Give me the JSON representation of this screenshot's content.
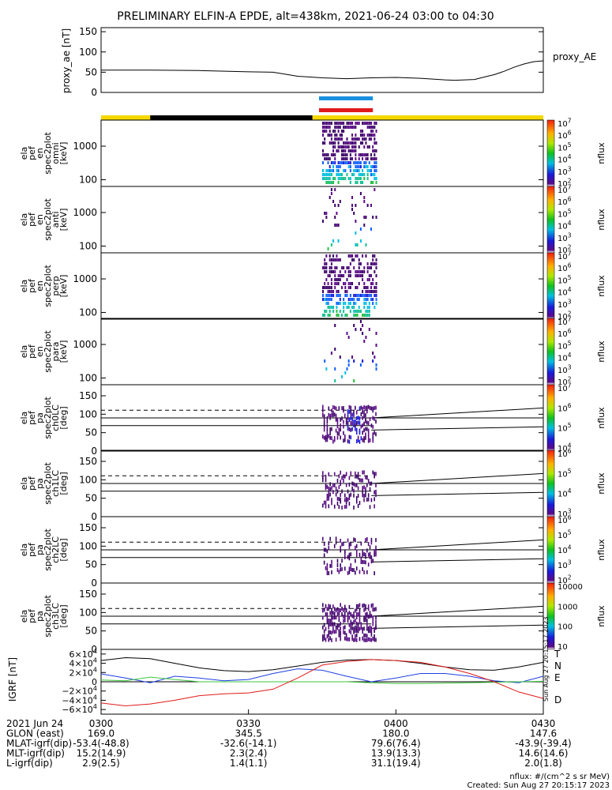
{
  "title": "PRELIMINARY ELFIN-A EPDE, alt=438km, 2021-06-24 03:00 to 04:30",
  "colors": {
    "blue_bar": "#1a8fe0",
    "red_bar": "#e01a1a",
    "sunlit": "#f5d800",
    "eclipse": "#000000"
  },
  "proxy_panel": {
    "ylabel": "proxy_ae [nT]",
    "legend": "proxy_AE",
    "yticks": [
      "150",
      "100",
      "50",
      "0"
    ]
  },
  "spectra_panels": [
    {
      "ylabel": [
        "ela",
        "pef",
        "en",
        "spec2plot",
        "omni",
        "[keV]"
      ],
      "yticks": [
        "1000",
        "100"
      ]
    },
    {
      "ylabel": [
        "ela",
        "pef",
        "en",
        "spec2plot",
        "anti",
        "[keV]"
      ],
      "yticks": [
        "1000",
        "100"
      ]
    },
    {
      "ylabel": [
        "ela",
        "pef",
        "en",
        "spec2plot",
        "perp",
        "[keV]"
      ],
      "yticks": [
        "1000",
        "100"
      ]
    },
    {
      "ylabel": [
        "ela",
        "pef",
        "en",
        "spec2plot",
        "para",
        "[keV]"
      ],
      "yticks": [
        "1000",
        "100"
      ]
    }
  ],
  "pa_panels": [
    {
      "ylabel": [
        "ela",
        "pef",
        "pa",
        "spec2plot",
        "ch0LC",
        "[deg]"
      ],
      "yticks": [
        "150",
        "100",
        "50",
        "0"
      ]
    },
    {
      "ylabel": [
        "ela",
        "pef",
        "pa",
        "spec2plot",
        "ch1LC",
        "[deg]"
      ],
      "yticks": [
        "150",
        "100",
        "50",
        "0"
      ]
    },
    {
      "ylabel": [
        "ela",
        "pef",
        "pa",
        "spec2plot",
        "ch2LC",
        "[deg]"
      ],
      "yticks": [
        "150",
        "100",
        "50",
        "0"
      ]
    },
    {
      "ylabel": [
        "ela",
        "pef",
        "pa",
        "spec2plot",
        "ch3LC",
        "[deg]"
      ],
      "yticks": [
        "150",
        "100",
        "50",
        "0"
      ]
    }
  ],
  "colorbars": [
    {
      "label": "nflux",
      "ticks": [
        "10^7",
        "10^6",
        "10^5",
        "10^4",
        "10^3",
        "10^2"
      ]
    },
    {
      "label": "nflux",
      "ticks": [
        "10^7",
        "10^6",
        "10^5",
        "10^4",
        "10^3",
        "10^2"
      ]
    },
    {
      "label": "nflux",
      "ticks": [
        "10^7",
        "10^6",
        "10^5",
        "10^4",
        "10^3",
        "10^2"
      ]
    },
    {
      "label": "nflux",
      "ticks": [
        "10^7",
        "10^6",
        "10^5",
        "10^4",
        "10^3",
        "10^2"
      ]
    },
    {
      "label": "nflux",
      "ticks": [
        "10^7",
        "10^6",
        "10^5",
        "10^4"
      ]
    },
    {
      "label": "nflux",
      "ticks": [
        "10^6",
        "10^5",
        "10^4",
        "10^3"
      ]
    },
    {
      "label": "nflux",
      "ticks": [
        "10^6",
        "10^5",
        "10^4",
        "10^3",
        "10^2"
      ]
    },
    {
      "label": "nflux",
      "ticks": [
        "10000",
        "1000",
        "100",
        "10"
      ]
    }
  ],
  "igrf_panel": {
    "ylabel": "IGRF [nT]",
    "yticks": [
      "6×10^4",
      "4×10^4",
      "2×10^4",
      "0",
      "−2×10^4",
      "−4×10^4",
      "−6×10^4"
    ],
    "legend": [
      {
        "label": "T",
        "color": "#000000"
      },
      {
        "label": "N",
        "color": "#1f3fe0"
      },
      {
        "label": "E",
        "color": "#3ec83e"
      },
      {
        "label": "D",
        "color": "#e01a1a"
      }
    ],
    "timestamp": "Sun Aug 27 20:15:17 2023"
  },
  "time_ticks": [
    "0300",
    "0330",
    "0400",
    "0430"
  ],
  "ephemeris": {
    "rows": [
      {
        "label": "2021 Jun 24",
        "values": [
          "0300",
          "0330",
          "0400",
          "0430"
        ]
      },
      {
        "label": "GLON (east)",
        "values": [
          "169.0",
          "345.5",
          "180.0",
          "147.6"
        ]
      },
      {
        "label": "MLAT-igrf(dip)",
        "values": [
          "-53.4(-48.8)",
          "-32.6(-14.1)",
          "79.6(76.4)",
          "-43.9(-39.4)"
        ]
      },
      {
        "label": "MLT-igrf(dip)",
        "values": [
          "15.2(14.9)",
          "2.3(2.4)",
          "13.9(13.3)",
          "14.6(14.6)"
        ]
      },
      {
        "label": "L-igrf(dip)",
        "values": [
          "2.9(2.5)",
          "1.4(1.1)",
          "31.1(19.4)",
          "2.0(1.8)"
        ]
      }
    ]
  },
  "footer": {
    "units": "nflux: #/(cm^2 s sr MeV)",
    "created": "Created: Sun Aug 27 20:15:17 2023"
  },
  "chart_data": {
    "type": "line",
    "title": "PRELIMINARY ELFIN-A EPDE, alt=438km, 2021-06-24 03:00 to 04:30",
    "x_unit": "minutes after 03:00",
    "xlim": [
      0,
      90
    ],
    "proxy_ae": {
      "ylabel": "proxy_ae [nT]",
      "ylim": [
        0,
        160
      ],
      "x": [
        0,
        10,
        20,
        30,
        35,
        40,
        45,
        50,
        55,
        60,
        65,
        70,
        72,
        74,
        76,
        78,
        80,
        82,
        84,
        86,
        88,
        90
      ],
      "y": [
        55,
        55,
        54,
        51,
        50,
        40,
        36,
        34,
        36,
        37,
        35,
        31,
        30,
        31,
        32,
        38,
        44,
        52,
        62,
        70,
        76,
        78
      ]
    },
    "igrf": {
      "ylabel": "IGRF [nT]",
      "ylim": [
        -70000,
        70000
      ],
      "x": [
        0,
        5,
        10,
        15,
        20,
        25,
        30,
        35,
        40,
        45,
        50,
        55,
        60,
        65,
        70,
        75,
        80,
        85,
        90
      ],
      "series": [
        {
          "name": "T",
          "values": [
            46000,
            52000,
            50000,
            40000,
            30000,
            24000,
            22000,
            26000,
            34000,
            42000,
            47000,
            48000,
            46000,
            40000,
            32000,
            26000,
            25000,
            32000,
            42000
          ]
        },
        {
          "name": "N",
          "values": [
            17000,
            8000,
            -2000,
            12000,
            8000,
            2000,
            5000,
            18000,
            28000,
            25000,
            12000,
            0,
            8000,
            18000,
            18000,
            12000,
            2000,
            -2000,
            12000
          ]
        },
        {
          "name": "E",
          "values": [
            4000,
            2000,
            10000,
            5000,
            0,
            0,
            0,
            0,
            0,
            0,
            0,
            -2000,
            -4000,
            -4000,
            -3000,
            -2000,
            -1000,
            0,
            1000
          ]
        },
        {
          "name": "D",
          "values": [
            -46000,
            -52000,
            -48000,
            -40000,
            -30000,
            -26000,
            -24000,
            -16000,
            8000,
            36000,
            44000,
            48000,
            46000,
            42000,
            32000,
            18000,
            0,
            -22000,
            -36000
          ]
        }
      ]
    },
    "activity_bars": {
      "blue": [
        45,
        55
      ],
      "red": [
        45,
        55
      ]
    },
    "orbit_bar": {
      "eclipse": [
        10,
        43
      ]
    },
    "lc_lines_deg": [
      69,
      90,
      111
    ],
    "lc_drift_deg": [
      [
        57,
        66
      ],
      [
        90,
        117
      ]
    ],
    "spectra_burst_min": [
      45,
      56
    ],
    "energy_ylim_keV": [
      63,
      6000
    ],
    "pa_ylim_deg": [
      0,
      180
    ]
  }
}
